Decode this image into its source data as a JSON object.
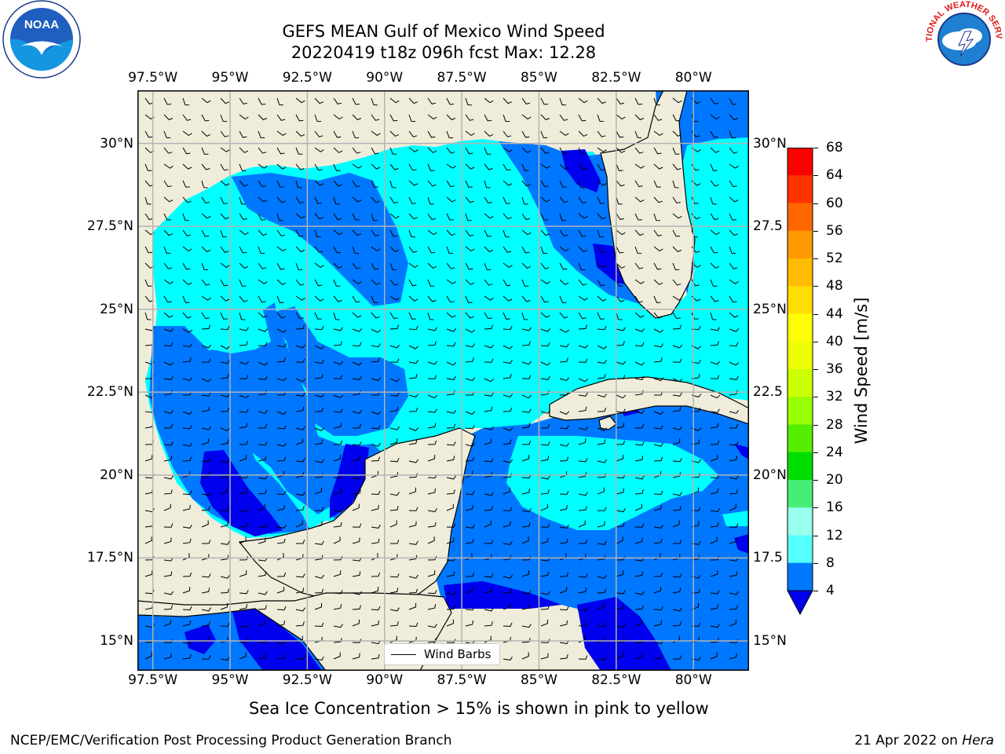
{
  "title_line1": "GEFS MEAN Gulf of Mexico Wind Speed",
  "title_line2": "20220419 t18z 096h fcst   Max: 12.28",
  "map": {
    "lon_ticks": [
      "97.5°W",
      "95°W",
      "92.5°W",
      "90°W",
      "87.5°W",
      "85°W",
      "82.5°W",
      "80°W"
    ],
    "lon_values": [
      -97.5,
      -95,
      -92.5,
      -90,
      -87.5,
      -85,
      -82.5,
      -80
    ],
    "lat_ticks_left": [
      "30°N",
      "27.5°N",
      "25°N",
      "22.5°N",
      "20°N",
      "17.5°N",
      "15°N"
    ],
    "lat_ticks_right": [
      "30°N",
      "27.5",
      "25°N",
      "22.5",
      "20°N",
      "17.5",
      "15°N"
    ],
    "lat_values": [
      30,
      27.5,
      25,
      22.5,
      20,
      17.5,
      15
    ],
    "extent": {
      "lon_min": -98,
      "lon_max": -78.2,
      "lat_min": 14.1,
      "lat_max": 31.6
    },
    "land_color": "#efedda",
    "ocean_fill_color": "#00ffff",
    "grid": true
  },
  "legend": {
    "label": "Wind Barbs"
  },
  "colorbar": {
    "label": "Wind Speed [m/s]",
    "ticks": [
      "68",
      "64",
      "60",
      "56",
      "52",
      "48",
      "44",
      "40",
      "36",
      "32",
      "28",
      "24",
      "20",
      "16",
      "12",
      "8",
      "4"
    ],
    "colors": [
      "#ff0000",
      "#ff3300",
      "#ff6600",
      "#ff9900",
      "#ffbb00",
      "#ffdd00",
      "#ffff00",
      "#eeff00",
      "#ccff00",
      "#99ff00",
      "#55ee00",
      "#00dd00",
      "#44ee77",
      "#99ffee",
      "#55ffff",
      "#00ffff",
      "#0077ff"
    ],
    "extend_color": "#0000ee"
  },
  "caption": "Sea Ice Concentration > 15% is shown in pink to yellow",
  "footer_left": "NCEP/EMC/Verification Post Processing Product Generation Branch",
  "footer_right_prefix": "21 Apr 2022 on ",
  "footer_right_host": "Hera",
  "logos": {
    "left": "NOAA",
    "right": "NATIONAL WEATHER SERVICE"
  }
}
